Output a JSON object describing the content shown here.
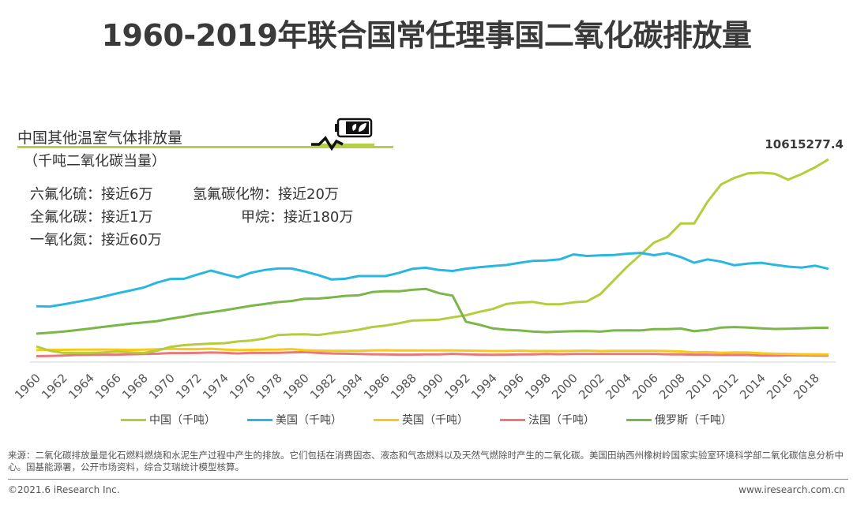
{
  "title": "1960-2019年联合国常任理事国二氧化碳排放量",
  "info_box": {
    "title": "中国其他温室气体排放量",
    "subtitle": "（千吨二氧化碳当量）",
    "icon": "battery-leaf-icon",
    "items": [
      {
        "name": "六氟化硫",
        "value": "接近6万",
        "text": "六氟化硫：接近6万"
      },
      {
        "name": "氢氟碳化物",
        "value": "接近20万",
        "text": "氢氟碳化物：接近20万"
      },
      {
        "name": "全氟化碳",
        "value": "接近1万",
        "text": "全氟化碳：接近1万"
      },
      {
        "name": "甲烷",
        "value": "接近180万",
        "text": "甲烷：接近180万"
      },
      {
        "name": "一氧化氮",
        "value": "接近60万",
        "text": "一氧化氮：接近60万"
      }
    ]
  },
  "chart_data": {
    "type": "line",
    "title": "1960-2019年联合国常任理事国二氧化碳排放量",
    "xlabel": "",
    "ylabel": "",
    "ylim": [
      0,
      19000000
    ],
    "grid": false,
    "legend_position": "bottom",
    "x": [
      1960,
      1961,
      1962,
      1963,
      1964,
      1965,
      1966,
      1967,
      1968,
      1969,
      1970,
      1971,
      1972,
      1973,
      1974,
      1975,
      1976,
      1977,
      1978,
      1979,
      1980,
      1981,
      1982,
      1983,
      1984,
      1985,
      1986,
      1987,
      1988,
      1989,
      1990,
      1991,
      1992,
      1993,
      1994,
      1995,
      1996,
      1997,
      1998,
      1999,
      2000,
      2001,
      2002,
      2003,
      2004,
      2005,
      2006,
      2007,
      2008,
      2009,
      2010,
      2011,
      2012,
      2013,
      2014,
      2015,
      2016,
      2017,
      2018,
      2019
    ],
    "x_tick_labels": [
      "1960",
      "1962",
      "1964",
      "1966",
      "1968",
      "1970",
      "1972",
      "1974",
      "1976",
      "1978",
      "1980",
      "1982",
      "1984",
      "1986",
      "1988",
      "1990",
      "1992",
      "1994",
      "1996",
      "1998",
      "2000",
      "2002",
      "2004",
      "2006",
      "2008",
      "2010",
      "2012",
      "2014",
      "2016",
      "2018"
    ],
    "data_labels": [
      {
        "series": "中国（千吨）",
        "x": 2019,
        "text": "10615277.4"
      }
    ],
    "series": [
      {
        "name": "中国（千吨）",
        "color": "#b5cc3f",
        "values": [
          780000,
          550000,
          440000,
          440000,
          440000,
          470000,
          510000,
          470000,
          440000,
          560000,
          760000,
          850000,
          890000,
          930000,
          950000,
          1040000,
          1090000,
          1200000,
          1380000,
          1410000,
          1420000,
          1380000,
          1480000,
          1560000,
          1660000,
          1800000,
          1880000,
          2000000,
          2140000,
          2160000,
          2190000,
          2310000,
          2420000,
          2600000,
          2750000,
          3010000,
          3090000,
          3120000,
          3000000,
          3000000,
          3100000,
          3150000,
          3530000,
          4250000,
          4970000,
          5610000,
          6240000,
          6540000,
          7250000,
          7250000,
          8400000,
          9300000,
          9650000,
          9880000,
          9920000,
          9860000,
          9550000,
          9850000,
          10200000,
          10615277.4
        ]
      },
      {
        "name": "美国（千吨）",
        "color": "#29b7e0",
        "values": [
          2890000,
          2880000,
          2990000,
          3120000,
          3250000,
          3400000,
          3570000,
          3720000,
          3880000,
          4140000,
          4330000,
          4340000,
          4560000,
          4770000,
          4580000,
          4410000,
          4660000,
          4800000,
          4880000,
          4880000,
          4720000,
          4530000,
          4300000,
          4340000,
          4480000,
          4480000,
          4480000,
          4650000,
          4860000,
          4920000,
          4800000,
          4750000,
          4870000,
          4950000,
          5010000,
          5060000,
          5180000,
          5280000,
          5300000,
          5360000,
          5620000,
          5540000,
          5570000,
          5590000,
          5660000,
          5700000,
          5580000,
          5690000,
          5480000,
          5180000,
          5360000,
          5240000,
          5050000,
          5140000,
          5180000,
          5070000,
          4980000,
          4930000,
          5030000,
          4860000
        ]
      },
      {
        "name": "英国（千吨）",
        "color": "#f7c919",
        "values": [
          590000,
          600000,
          600000,
          610000,
          610000,
          620000,
          610000,
          600000,
          610000,
          630000,
          650000,
          640000,
          640000,
          660000,
          620000,
          590000,
          600000,
          610000,
          610000,
          640000,
          580000,
          560000,
          550000,
          550000,
          550000,
          570000,
          580000,
          570000,
          570000,
          570000,
          570000,
          570000,
          560000,
          550000,
          540000,
          540000,
          560000,
          540000,
          540000,
          540000,
          550000,
          560000,
          540000,
          550000,
          550000,
          550000,
          550000,
          540000,
          520000,
          470000,
          490000,
          450000,
          470000,
          460000,
          420000,
          400000,
          380000,
          370000,
          370000,
          360000
        ]
      },
      {
        "name": "法国（千吨）",
        "color": "#e8787a",
        "values": [
          270000,
          280000,
          300000,
          330000,
          340000,
          350000,
          350000,
          370000,
          380000,
          400000,
          430000,
          430000,
          440000,
          460000,
          450000,
          410000,
          450000,
          440000,
          450000,
          470000,
          480000,
          440000,
          410000,
          400000,
          380000,
          370000,
          360000,
          350000,
          350000,
          360000,
          360000,
          390000,
          370000,
          350000,
          340000,
          350000,
          360000,
          360000,
          380000,
          370000,
          380000,
          380000,
          380000,
          380000,
          380000,
          380000,
          380000,
          370000,
          360000,
          350000,
          350000,
          330000,
          330000,
          330000,
          300000,
          300000,
          310000,
          310000,
          300000,
          300000
        ]
      },
      {
        "name": "俄罗斯（千吨）",
        "color": "#7ab648",
        "values": [
          1450000,
          1500000,
          1560000,
          1640000,
          1720000,
          1810000,
          1890000,
          1980000,
          2040000,
          2110000,
          2240000,
          2350000,
          2480000,
          2580000,
          2680000,
          2800000,
          2920000,
          3010000,
          3110000,
          3170000,
          3290000,
          3300000,
          3360000,
          3440000,
          3470000,
          3640000,
          3690000,
          3680000,
          3760000,
          3810000,
          3580000,
          3450000,
          2080000,
          1920000,
          1730000,
          1660000,
          1620000,
          1560000,
          1530000,
          1560000,
          1580000,
          1590000,
          1560000,
          1620000,
          1630000,
          1620000,
          1690000,
          1690000,
          1720000,
          1580000,
          1650000,
          1770000,
          1800000,
          1770000,
          1730000,
          1700000,
          1710000,
          1730000,
          1760000,
          1760000
        ]
      }
    ]
  },
  "legend": [
    {
      "label": "中国（千吨）",
      "color": "#b5cc3f"
    },
    {
      "label": "美国（千吨）",
      "color": "#29b7e0"
    },
    {
      "label": "英国（千吨）",
      "color": "#f7c919"
    },
    {
      "label": "法国（千吨）",
      "color": "#e8787a"
    },
    {
      "label": "俄罗斯（千吨）",
      "color": "#7ab648"
    }
  ],
  "footer": {
    "source": "来源：二氧化碳排放量是化石燃料燃烧和水泥生产过程中产生的排放。它们包括在消费固态、液态和气态燃料以及天然气燃除时产生的二氧化碳。美国田纳西州橡树岭国家实验室环境科学部二氧化碳信息分析中心。国基能源署，公开市场资料，综合艾瑞统计模型核算。",
    "copyright": "©2021.6 iResearch Inc.",
    "website": "www.iresearch.com.cn"
  }
}
